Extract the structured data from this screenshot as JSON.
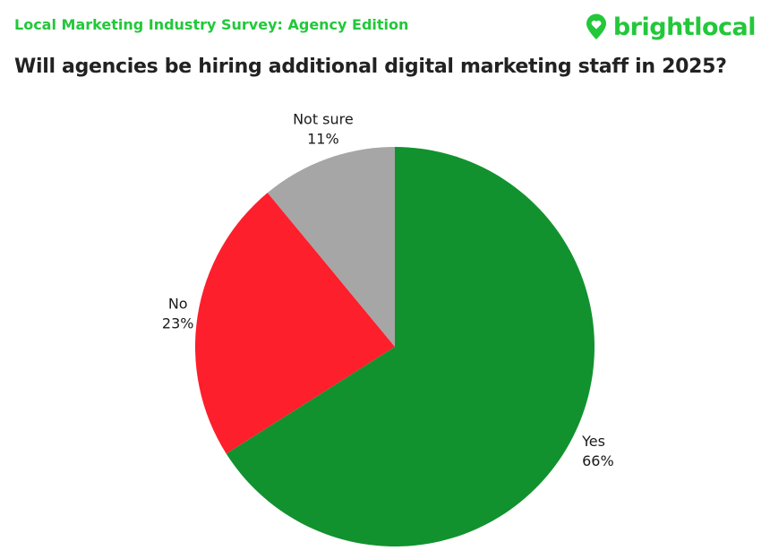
{
  "header": {
    "supertitle": "Local Marketing Industry Survey: Agency Edition",
    "brand": "brightlocal",
    "brand_icon": "map-pin-heart-icon"
  },
  "colors": {
    "brand": "#22c83a",
    "title": "#222222"
  },
  "chart_data": {
    "type": "pie",
    "title": "Will agencies be hiring additional digital marketing staff in 2025?",
    "start": "12 o'clock",
    "direction": "clockwise",
    "legend": "none",
    "slices": [
      {
        "label": "Yes",
        "value": 66,
        "display": "66%",
        "color": "#12922e"
      },
      {
        "label": "No",
        "value": 23,
        "display": "23%",
        "color": "#fe1f2c"
      },
      {
        "label": "Not sure",
        "value": 11,
        "display": "11%",
        "color": "#a6a6a6"
      }
    ]
  }
}
